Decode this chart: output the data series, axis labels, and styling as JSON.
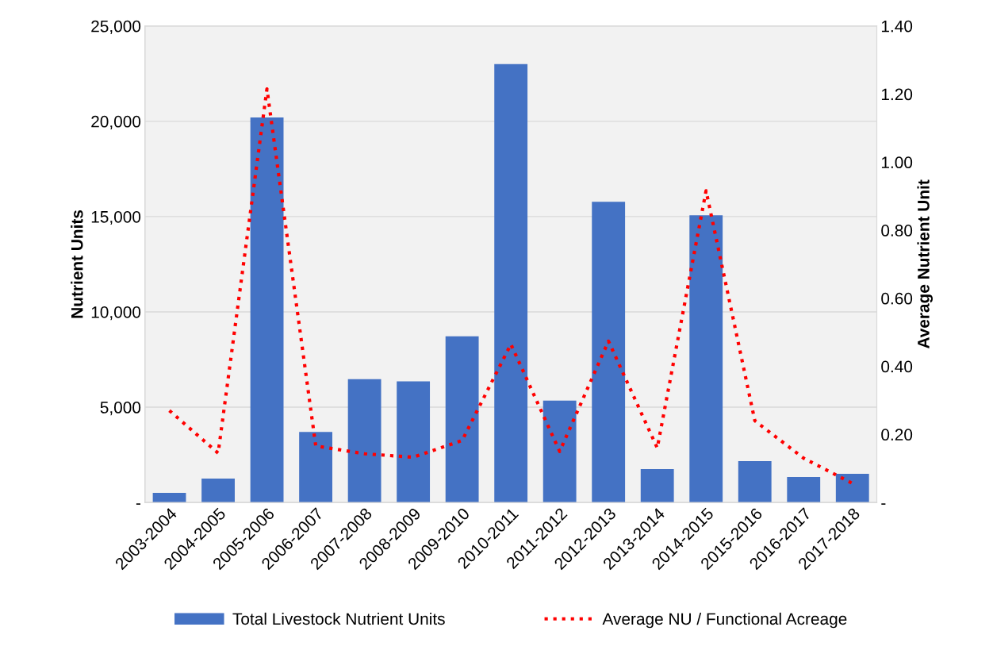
{
  "chart_data": {
    "type": "bar",
    "categories": [
      "2003-2004",
      "2004-2005",
      "2005-2006",
      "2006-2007",
      "2007-2008",
      "2008-2009",
      "2009-2010",
      "2010-2011",
      "2011-2012",
      "2012-2013",
      "2013-2014",
      "2014-2015",
      "2015-2016",
      "2016-2017",
      "2017-2018"
    ],
    "series": [
      {
        "name": "Total Livestock Nutrient Units",
        "color": "#4472c4",
        "values": [
          500,
          1250,
          20200,
          3700,
          6470,
          6350,
          8720,
          23000,
          5340,
          15780,
          1750,
          15070,
          2170,
          1340,
          1500
        ]
      },
      {
        "name": "Average NU / Functional Acreage",
        "type": "line",
        "axis": "y2",
        "color": "#ff0000",
        "line_style": "dotted",
        "values": [
          0.27,
          0.145,
          1.215,
          0.166,
          0.143,
          0.133,
          0.182,
          0.465,
          0.15,
          0.474,
          0.16,
          0.916,
          0.24,
          0.13,
          0.056
        ]
      }
    ],
    "ylabel": "Nutrient Units",
    "y2label": "Average Nutrient Unit",
    "ylim": [
      0,
      25000
    ],
    "yticks": [
      {
        "value": 0,
        "label": "-"
      },
      {
        "value": 5000,
        "label": "5,000"
      },
      {
        "value": 10000,
        "label": "10,000"
      },
      {
        "value": 15000,
        "label": "15,000"
      },
      {
        "value": 20000,
        "label": "20,000"
      },
      {
        "value": 25000,
        "label": "25,000"
      }
    ],
    "y2lim": [
      0,
      1.4
    ],
    "y2ticks": [
      {
        "value": 0,
        "label": "-"
      },
      {
        "value": 0.2,
        "label": "0.20"
      },
      {
        "value": 0.4,
        "label": "0.40"
      },
      {
        "value": 0.6,
        "label": "0.60"
      },
      {
        "value": 0.8,
        "label": "0.80"
      },
      {
        "value": 1.0,
        "label": "1.00"
      },
      {
        "value": 1.2,
        "label": "1.20"
      },
      {
        "value": 1.4,
        "label": "1.40"
      }
    ],
    "grid": "y",
    "legend": "bottom"
  }
}
